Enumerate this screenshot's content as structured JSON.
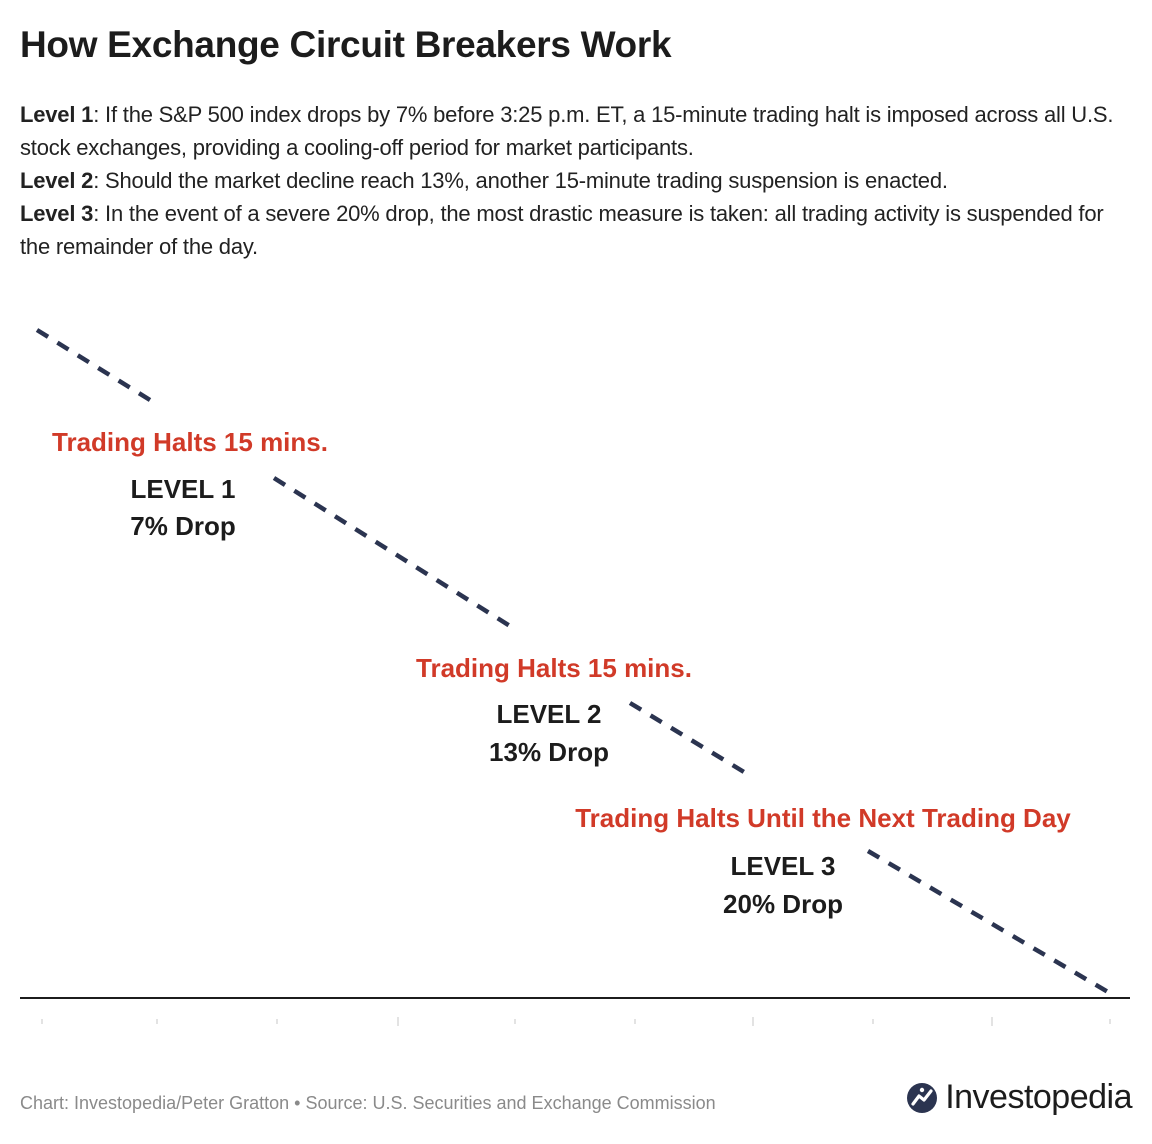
{
  "title": "How Exchange Circuit Breakers Work",
  "description": [
    {
      "label": "Level 1",
      "text": ": If the S&P 500 index drops by 7% before 3:25 p.m. ET, a 15-minute trading halt is imposed across all U.S. stock exchanges, providing a cooling-off period for market participants."
    },
    {
      "label": "Level 2",
      "text": ": Should the market decline reach 13%, another 15-minute trading suspension is enacted."
    },
    {
      "label": "Level 3",
      "text": ": In the event of a severe 20% drop, the most drastic measure is taken: all trading activity is suspended for the remainder of the day."
    }
  ],
  "levels": [
    {
      "halt": "Trading Halts 15 mins.",
      "level": "LEVEL 1",
      "drop": "7% Drop"
    },
    {
      "halt": "Trading Halts 15 mins.",
      "level": "LEVEL 2",
      "drop": "13% Drop"
    },
    {
      "halt": "Trading Halts Until the Next Trading Day",
      "level": "LEVEL 3",
      "drop": "20% Drop"
    }
  ],
  "footer": {
    "credit": "Chart: Investopedia/Peter Gratton • Source: U.S. Securities and Exchange Commission",
    "brand": "Investopedia"
  },
  "colors": {
    "halt_text": "#d13a28",
    "line": "#2b3450",
    "brand_icon": "#2b3450"
  }
}
